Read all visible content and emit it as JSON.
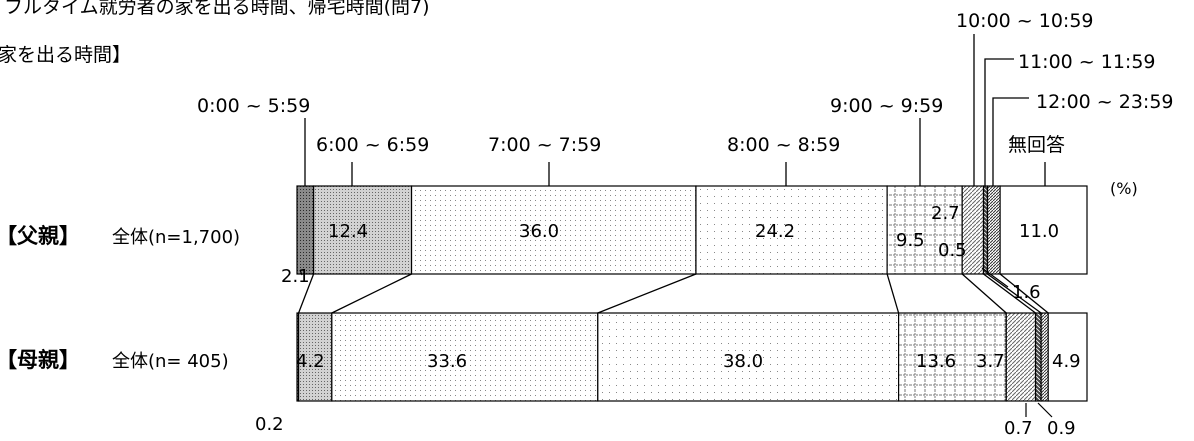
{
  "header": {
    "title": "フルタイム就労者の家を出る時間、帰宅時間(問7)",
    "subtitle": "家を出る時間】"
  },
  "chart_data": {
    "type": "stacked-bar-horizontal",
    "unit_label": "(%)",
    "categories": [
      "0:00 ~ 5:59",
      "6:00 ~ 6:59",
      "7:00 ~ 7:59",
      "8:00 ~ 8:59",
      "9:00 ~ 9:59",
      "10:00 ~ 10:59",
      "11:00 ~ 11:59",
      "12:00 ~ 23:59",
      "無回答"
    ],
    "series": [
      {
        "group": "【父親】",
        "label": "全体(n=1,700)",
        "values": [
          2.1,
          12.4,
          36.0,
          24.2,
          9.5,
          2.7,
          0.5,
          1.6,
          11.0
        ]
      },
      {
        "group": "【母親】",
        "label": "全体(n= 405)",
        "values": [
          0.2,
          4.2,
          33.6,
          38.0,
          13.6,
          3.7,
          0.7,
          0.9,
          4.9
        ]
      }
    ],
    "value_labels": [
      [
        "2.1",
        "12.4",
        "36.0",
        "24.2",
        "9.5",
        "2.7",
        "0.5",
        "1.6",
        "11.0"
      ],
      [
        "0.2",
        "4.2",
        "33.6",
        "38.0",
        "13.6",
        "3.7",
        "0.7",
        "0.9",
        "4.9"
      ]
    ],
    "colors": {
      "seg0": "#6a6a6a",
      "seg1": "#b9b9b9",
      "seg2": "#ececec",
      "seg3": "#f0f0f0",
      "seg4": "#e2e2e2",
      "seg5": "#c9c9c9",
      "seg6": "#777777",
      "seg7": "#9a9a9a",
      "seg8": "#ffffff"
    }
  }
}
